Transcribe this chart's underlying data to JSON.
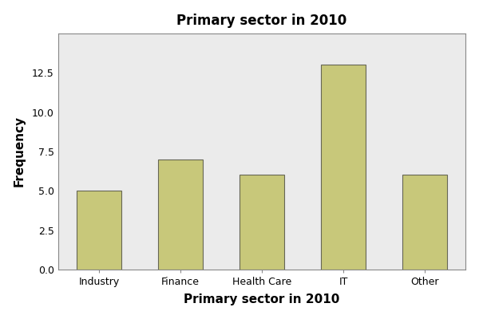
{
  "categories": [
    "Industry",
    "Finance",
    "Health Care",
    "IT",
    "Other"
  ],
  "values": [
    5,
    7,
    6,
    13,
    6
  ],
  "bar_color": "#C8C87A",
  "bar_edgecolor": "#666655",
  "title": "Primary sector in 2010",
  "xlabel": "Primary sector in 2010",
  "ylabel": "Frequency",
  "ylim": [
    0,
    15
  ],
  "yticks": [
    0.0,
    2.5,
    5.0,
    7.5,
    10.0,
    12.5
  ],
  "figure_bg": "#ffffff",
  "axes_bg": "#EBEBEB",
  "spine_color": "#888888",
  "title_fontsize": 12,
  "label_fontsize": 11,
  "tick_fontsize": 9,
  "bar_width": 0.55
}
